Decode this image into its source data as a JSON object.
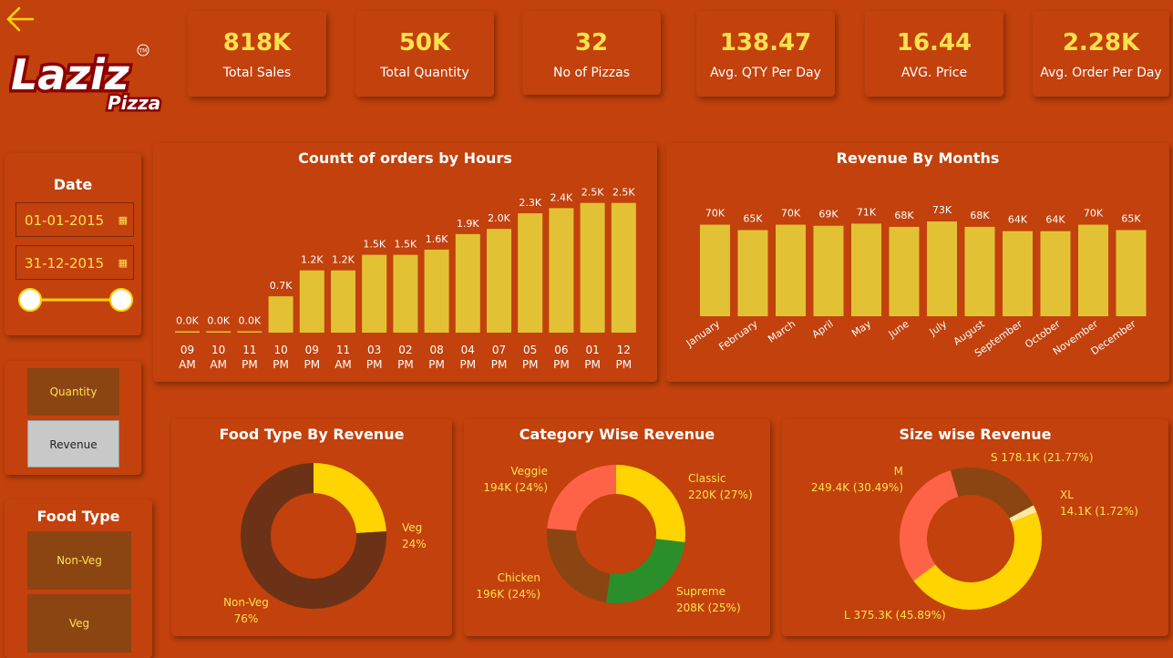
{
  "kpis": [
    {
      "value": "818K",
      "label": "Total Sales"
    },
    {
      "value": "50K",
      "label": "Total Quantity"
    },
    {
      "value": "32",
      "label": "No of Pizzas"
    },
    {
      "value": "138.47",
      "label": "Avg. QTY Per Day"
    },
    {
      "value": "16.44",
      "label": "AVG. Price"
    },
    {
      "value": "2.28K",
      "label": "Avg. Order Per Day"
    }
  ],
  "logo": {
    "brand": "Laziz",
    "sub": "Pizza",
    "mark": "TM"
  },
  "date_filter": {
    "title": "Date",
    "start": "01-01-2015",
    "end": "31-12-2015",
    "slider_position": [
      0,
      1
    ]
  },
  "metric_toggle": {
    "quantity": "Quantity",
    "revenue": "Revenue",
    "selected": "Revenue"
  },
  "food_type_filter": {
    "title": "Food Type",
    "options": [
      "Non-Veg",
      "Veg"
    ]
  },
  "colors": {
    "background": "#C2410C",
    "bar": "#E2C234",
    "kpi_value": "#FFE14D",
    "slicer_button": "#8B4513",
    "selected_button": "#C8C8C8"
  },
  "chart_data": [
    {
      "type": "bar",
      "title": "Countt of orders by Hours",
      "categories": [
        "09 AM",
        "10 AM",
        "11 PM",
        "10 PM",
        "09 PM",
        "11 AM",
        "03 PM",
        "02 PM",
        "08 PM",
        "04 PM",
        "07 PM",
        "05 PM",
        "06 PM",
        "01 PM",
        "12 PM"
      ],
      "tick_lines": [
        [
          "09",
          "AM"
        ],
        [
          "10",
          "AM"
        ],
        [
          "11",
          "PM"
        ],
        [
          "10",
          "PM"
        ],
        [
          "09",
          "PM"
        ],
        [
          "11",
          "AM"
        ],
        [
          "03",
          "PM"
        ],
        [
          "02",
          "PM"
        ],
        [
          "08",
          "PM"
        ],
        [
          "04",
          "PM"
        ],
        [
          "07",
          "PM"
        ],
        [
          "05",
          "PM"
        ],
        [
          "06",
          "PM"
        ],
        [
          "01",
          "PM"
        ],
        [
          "12",
          "PM"
        ]
      ],
      "values": [
        0.0,
        0.0,
        0.0,
        0.7,
        1.2,
        1.2,
        1.5,
        1.5,
        1.6,
        1.9,
        2.0,
        2.3,
        2.4,
        2.5,
        2.5
      ],
      "labels": [
        "0.0K",
        "0.0K",
        "0.0K",
        "0.7K",
        "1.2K",
        "1.2K",
        "1.5K",
        "1.5K",
        "1.6K",
        "1.9K",
        "2.0K",
        "2.3K",
        "2.4K",
        "2.5K",
        "2.5K"
      ],
      "ylim": [
        0,
        2.6
      ]
    },
    {
      "type": "bar",
      "title": "Revenue By Months",
      "categories": [
        "January",
        "February",
        "March",
        "April",
        "May",
        "June",
        "July",
        "August",
        "September",
        "October",
        "November",
        "December"
      ],
      "values": [
        70,
        65,
        70,
        69,
        71,
        68,
        73,
        68,
        64,
        64,
        70,
        65
      ],
      "labels": [
        "70K",
        "65K",
        "70K",
        "69K",
        "71K",
        "68K",
        "73K",
        "68K",
        "64K",
        "64K",
        "70K",
        "65K"
      ],
      "ylim": [
        0,
        75
      ]
    },
    {
      "type": "pie",
      "title": "Food Type By Revenue",
      "slices": [
        {
          "name": "Veg",
          "value": 24,
          "label_lines": [
            "Veg",
            "24%"
          ],
          "color": "#FFD400"
        },
        {
          "name": "Non-Veg",
          "value": 76,
          "label_lines": [
            "Non-Veg",
            "76%"
          ],
          "color": "#6B3218"
        }
      ]
    },
    {
      "type": "pie",
      "title": "Category Wise Revenue",
      "slices": [
        {
          "name": "Classic",
          "value": 220,
          "label_lines": [
            "Classic",
            "220K (27%)"
          ],
          "color": "#FFD400"
        },
        {
          "name": "Supreme",
          "value": 208,
          "label_lines": [
            "Supreme",
            "208K (25%)"
          ],
          "color": "#2A8F2A"
        },
        {
          "name": "Chicken",
          "value": 196,
          "label_lines": [
            "Chicken",
            "196K (24%)"
          ],
          "color": "#8B4513"
        },
        {
          "name": "Veggie",
          "value": 194,
          "label_lines": [
            "Veggie",
            "194K (24%)"
          ],
          "color": "#FF6347"
        }
      ]
    },
    {
      "type": "pie",
      "title": "Size wise Revenue",
      "slices": [
        {
          "name": "XL",
          "value": 14.1,
          "label_lines": [
            "XL",
            "14.1K (1.72%)"
          ],
          "color": "#FFE9A0"
        },
        {
          "name": "L",
          "value": 375.3,
          "label_lines": [
            "L 375.3K (45.89%)"
          ],
          "color": "#FFD400"
        },
        {
          "name": "M",
          "value": 249.4,
          "label_lines": [
            "M",
            "249.4K (30.49%)"
          ],
          "color": "#FF6347"
        },
        {
          "name": "S",
          "value": 178.1,
          "label_lines": [
            "S 178.1K (21.77%)"
          ],
          "color": "#8B4513"
        }
      ]
    }
  ]
}
